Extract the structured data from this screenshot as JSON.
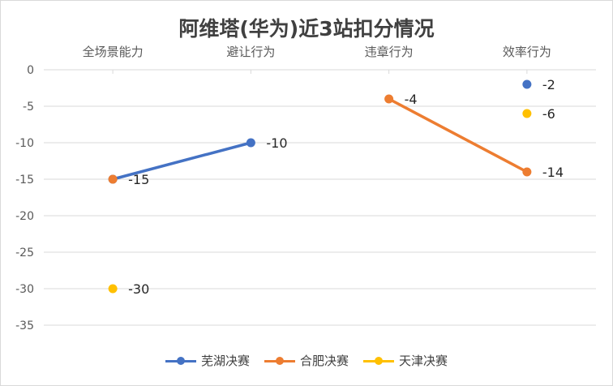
{
  "chart_data": {
    "type": "line",
    "title": "阿维塔(华为)近3站扣分情况",
    "categories": [
      "全场景能力",
      "避让行为",
      "违章行为",
      "效率行为"
    ],
    "ylim": [
      -35,
      0
    ],
    "yticks": [
      0,
      -5,
      -10,
      -15,
      -20,
      -25,
      -30,
      -35
    ],
    "grid": true,
    "legend_position": "bottom",
    "series": [
      {
        "name": "芜湖决赛",
        "color": "#4472C4",
        "values": [
          -15,
          -10,
          null,
          -2
        ]
      },
      {
        "name": "合肥决赛",
        "color": "#ED7D31",
        "values": [
          -15,
          null,
          -4,
          -14
        ]
      },
      {
        "name": "天津决赛",
        "color": "#FFC000",
        "values": [
          -30,
          null,
          null,
          -6
        ]
      }
    ],
    "data_labels": [
      {
        "category": 0,
        "value": -15,
        "text": "-15"
      },
      {
        "category": 0,
        "value": -30,
        "text": "-30"
      },
      {
        "category": 1,
        "value": -10,
        "text": "-10"
      },
      {
        "category": 2,
        "value": -4,
        "text": "-4"
      },
      {
        "category": 3,
        "value": -2,
        "text": "-2"
      },
      {
        "category": 3,
        "value": -6,
        "text": "-6"
      },
      {
        "category": 3,
        "value": -14,
        "text": "-14"
      }
    ]
  }
}
